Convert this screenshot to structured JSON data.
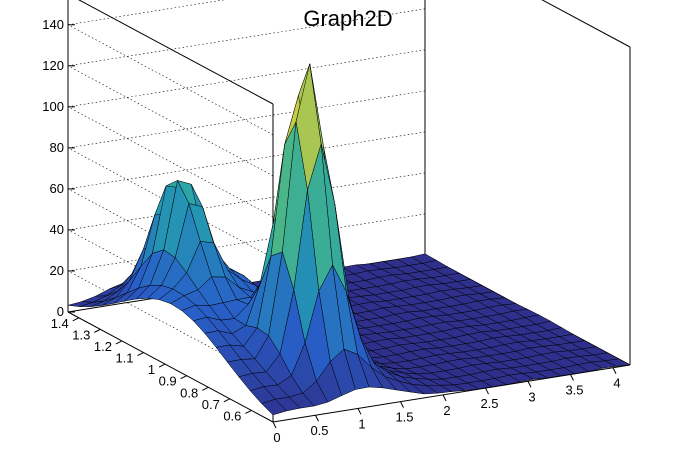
{
  "chart_data": {
    "type": "surface",
    "title": "Graph2D",
    "xlabel": "",
    "ylabel": "",
    "zlabel": "",
    "xlim": [
      0,
      4.2
    ],
    "ylim": [
      0.5,
      1.45
    ],
    "zlim": [
      0,
      155
    ],
    "x_ticks": [
      "0",
      "0.5",
      "1",
      "1.5",
      "2",
      "2.5",
      "3",
      "3.5",
      "4"
    ],
    "y_ticks": [
      "0.6",
      "0.7",
      "0.8",
      "0.9",
      "1",
      "1.1",
      "1.2",
      "1.3",
      "1.4"
    ],
    "z_ticks": [
      "0",
      "20",
      "40",
      "60",
      "80",
      "100",
      "120",
      "140"
    ],
    "grid": true,
    "colormap": "viridis-like (blue to green to yellow)",
    "features": [
      {
        "label": "main peak",
        "x": 0.95,
        "y": 0.72,
        "z": 150
      },
      {
        "label": "secondary peak",
        "x": 0.55,
        "y": 1.15,
        "z": 62
      },
      {
        "label": "low plateau",
        "x_range": [
          2.2,
          4.2
        ],
        "z": 0
      }
    ]
  }
}
